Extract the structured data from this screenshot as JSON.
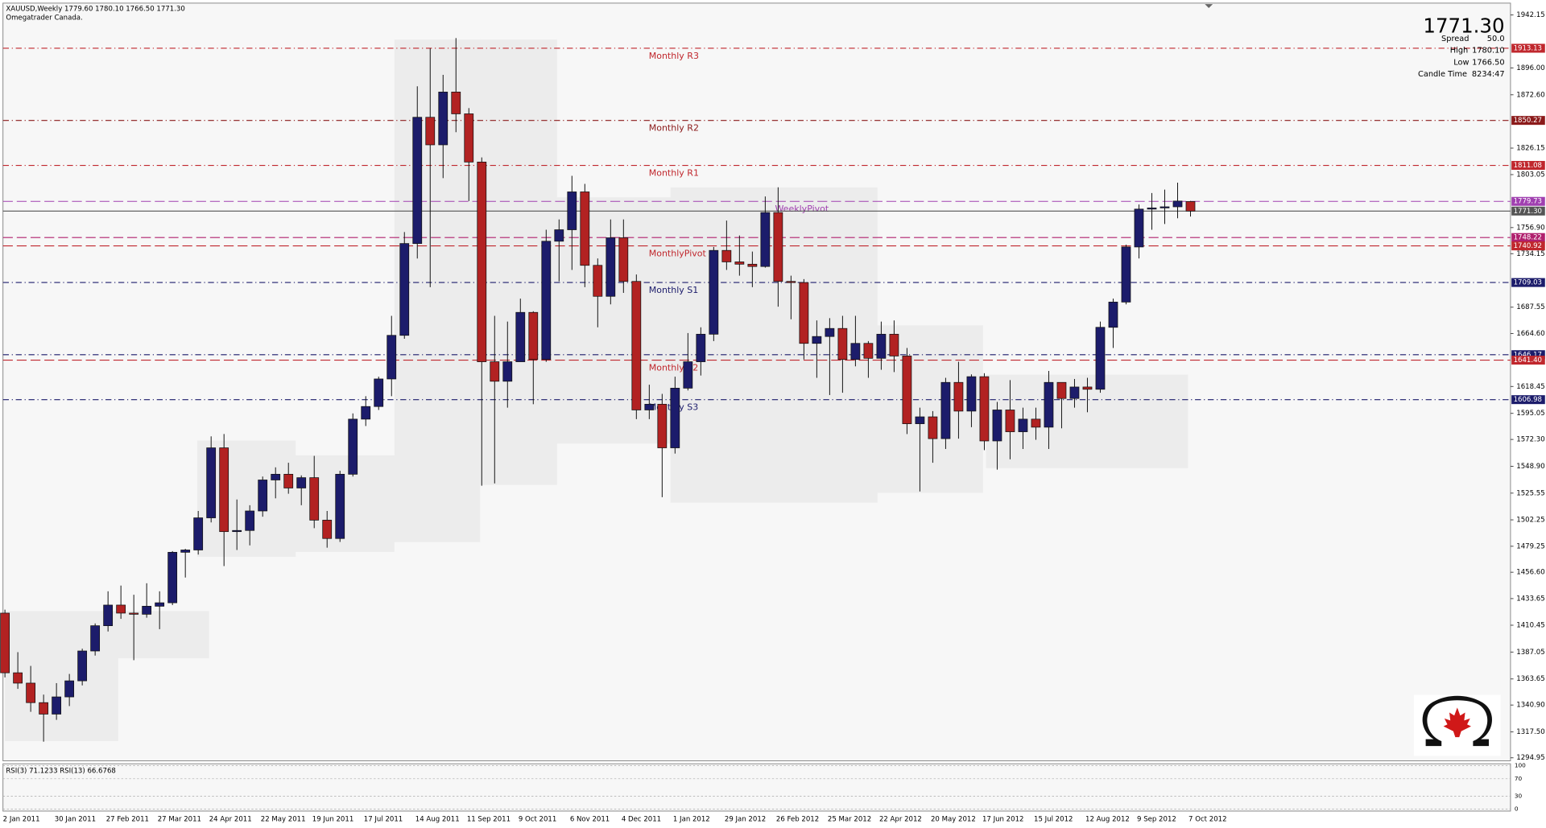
{
  "header": {
    "symbol_line": "XAUUSD,Weekly  1779.60 1780.10 1766.50 1771.30",
    "broker": "Omegatrader Canada."
  },
  "quote": {
    "bid": "1771.30",
    "spread_label": "Spread",
    "spread": "50.0",
    "high_label": "High",
    "high": "1780.10",
    "low_label": "Low",
    "low": "1766.50",
    "candle_time_label": "Candle Time",
    "candle_time": "8234:47"
  },
  "rsi": {
    "label": "RSI(3) 71.1233  RSI(13) 66.6768",
    "ylim": [
      0,
      100
    ],
    "yticks": [
      100,
      70,
      30,
      0
    ]
  },
  "chart_data": {
    "type": "candlestick",
    "up_color": "#1c1c6b",
    "down_color": "#b22222",
    "ylim": [
      1292.3,
      1952.45
    ],
    "yticks": [
      1942.15,
      {
        "value": 1896.0,
        "label": "1896.00"
      },
      {
        "value": 1872.6,
        "label": "1872.60"
      },
      1826.15,
      1803.05,
      {
        "value": 1756.9,
        "label": "1756.90"
      },
      1734.15,
      1687.55,
      {
        "value": 1664.6,
        "label": "1664.60"
      },
      1618.45,
      1595.05,
      {
        "value": 1572.3,
        "label": "1572.30"
      },
      {
        "value": 1548.9,
        "label": "1548.90"
      },
      1525.55,
      1502.25,
      1479.25,
      {
        "value": 1456.6,
        "label": "1456.60"
      },
      1433.65,
      1410.45,
      1387.05,
      1363.65,
      {
        "value": 1340.9,
        "label": "1340.90"
      },
      {
        "value": 1317.5,
        "label": "1317.50"
      },
      1294.95
    ],
    "x": [
      "2 Jan 2011",
      null,
      null,
      null,
      "30 Jan 2011",
      null,
      null,
      null,
      "27 Feb 2011",
      null,
      null,
      null,
      "27 Mar 2011",
      null,
      null,
      null,
      "24 Apr 2011",
      null,
      null,
      null,
      "22 May 2011",
      null,
      null,
      null,
      "19 Jun 2011",
      null,
      null,
      null,
      "17 Jul 2011",
      null,
      null,
      null,
      "14 Aug 2011",
      null,
      null,
      null,
      "11 Sep 2011",
      null,
      null,
      null,
      "9 Oct 2011",
      null,
      null,
      null,
      "6 Nov 2011",
      null,
      null,
      null,
      "4 Dec 2011",
      null,
      null,
      null,
      "1 Jan 2012",
      null,
      null,
      null,
      "29 Jan 2012",
      null,
      null,
      null,
      "26 Feb 2012",
      null,
      null,
      null,
      "25 Mar 2012",
      null,
      null,
      null,
      "22 Apr 2012",
      null,
      null,
      null,
      "20 May 2012",
      null,
      null,
      null,
      "17 Jun 2012",
      null,
      null,
      null,
      "15 Jul 2012",
      null,
      null,
      null,
      "12 Aug 2012",
      null,
      null,
      null,
      "9 Sep 2012",
      null,
      null,
      null,
      "7 Oct 2012"
    ],
    "open": [
      1421,
      1369,
      1360,
      1343,
      1333,
      1348,
      1362,
      1388,
      1410,
      1428,
      1421,
      1420,
      1427,
      1430,
      1474,
      1476,
      1504,
      1565,
      1492,
      1493,
      1510,
      1537,
      1542,
      1530,
      1539,
      1502,
      1486,
      1542,
      1590,
      1601,
      1625,
      1663,
      1743,
      1853,
      1829,
      1875,
      1856,
      1814,
      1640,
      1623,
      1640,
      1683,
      1642,
      1745,
      1755,
      1788,
      1724,
      1697,
      1748,
      1710,
      1598,
      1603,
      1565,
      1617,
      1640,
      1664,
      1737,
      1727,
      1725,
      1723,
      1770,
      1710,
      1709,
      1656,
      1662,
      1669,
      1642,
      1656,
      1643,
      1664,
      1645,
      1586,
      1592,
      1573,
      1622,
      1597,
      1627,
      1571,
      1598,
      1579,
      1590,
      1583,
      1622,
      1608,
      1618,
      1616,
      1670,
      1692,
      1740,
      1773,
      1774,
      1775,
      1779.6
    ],
    "high": [
      1424,
      1387,
      1375,
      1350,
      1360,
      1368,
      1390,
      1412,
      1440,
      1445,
      1437,
      1447,
      1440,
      1475,
      1477,
      1510,
      1575,
      1577,
      1520,
      1515,
      1540,
      1548,
      1552,
      1541,
      1558,
      1510,
      1545,
      1595,
      1610,
      1627,
      1680,
      1753,
      1880,
      1913,
      1890,
      1922,
      1861,
      1818,
      1680,
      1675,
      1695,
      1684,
      1755,
      1764,
      1802,
      1795,
      1730,
      1764,
      1764,
      1716,
      1620,
      1612,
      1627,
      1665,
      1670,
      1740,
      1763,
      1750,
      1736,
      1784,
      1792,
      1715,
      1712,
      1676,
      1678,
      1680,
      1680,
      1658,
      1675,
      1676,
      1652,
      1600,
      1597,
      1626,
      1640,
      1629,
      1630,
      1605,
      1624,
      1600,
      1600,
      1632,
      1622,
      1625,
      1626,
      1675,
      1695,
      1742,
      1777,
      1787,
      1790,
      1796,
      1780.1
    ],
    "low": [
      1365,
      1355,
      1335,
      1309,
      1328,
      1340,
      1358,
      1384,
      1405,
      1416,
      1380,
      1417,
      1407,
      1428,
      1452,
      1472,
      1500,
      1462,
      1476,
      1480,
      1505,
      1521,
      1525,
      1515,
      1495,
      1478,
      1483,
      1540,
      1584,
      1598,
      1610,
      1660,
      1730,
      1705,
      1800,
      1840,
      1780,
      1532,
      1534,
      1600,
      1640,
      1603,
      1640,
      1710,
      1720,
      1705,
      1670,
      1690,
      1700,
      1590,
      1590,
      1522,
      1560,
      1615,
      1628,
      1658,
      1720,
      1715,
      1705,
      1722,
      1688,
      1677,
      1642,
      1626,
      1611,
      1613,
      1636,
      1626,
      1633,
      1631,
      1577,
      1527,
      1552,
      1564,
      1573,
      1583,
      1563,
      1546,
      1555,
      1564,
      1572,
      1564,
      1582,
      1600,
      1596,
      1613,
      1652,
      1690,
      1730,
      1755,
      1760,
      1765,
      1766.5
    ],
    "close": [
      1369,
      1360,
      1343,
      1333,
      1348,
      1362,
      1388,
      1410,
      1428,
      1421,
      1420,
      1427,
      1430,
      1474,
      1476,
      1504,
      1565,
      1492,
      1493,
      1510,
      1537,
      1542,
      1530,
      1539,
      1502,
      1486,
      1542,
      1590,
      1601,
      1625,
      1663,
      1743,
      1853,
      1829,
      1875,
      1856,
      1814,
      1640,
      1623,
      1640,
      1683,
      1642,
      1745,
      1755,
      1788,
      1724,
      1697,
      1748,
      1710,
      1598,
      1603,
      1565,
      1617,
      1640,
      1664,
      1737,
      1727,
      1725,
      1723,
      1770,
      1710,
      1709,
      1656,
      1662,
      1669,
      1642,
      1656,
      1643,
      1664,
      1645,
      1586,
      1592,
      1573,
      1622,
      1597,
      1627,
      1571,
      1598,
      1579,
      1590,
      1583,
      1622,
      1608,
      1618,
      1616,
      1670,
      1692,
      1740,
      1773,
      1774,
      1775,
      1780,
      1771.3
    ],
    "levels": [
      {
        "name": "Monthly R3",
        "value": 1913.13,
        "tag": "1913.13",
        "color": "#c0272d",
        "style": "dashdot"
      },
      {
        "name": "Monthly R2",
        "value": 1850.27,
        "tag": "1850.27",
        "color": "#8b1a1a",
        "style": "dashdot"
      },
      {
        "name": "Monthly R1",
        "value": 1811.08,
        "tag": "1811.08",
        "color": "#c0272d",
        "style": "dashdot"
      },
      {
        "name": "WeeklyPivot",
        "value": 1779.73,
        "tag": "1779.73",
        "color": "#a040b0",
        "style": "dash"
      },
      {
        "value": 1771.3,
        "tag": "1771.30",
        "color": "#555555",
        "style": "solid"
      },
      {
        "value": 1748.22,
        "tag": "1748.22",
        "color": "#b0206e",
        "style": "dash"
      },
      {
        "name": "MonthlyPivot",
        "value": 1740.92,
        "tag": "1740.92",
        "color": "#c0272d",
        "style": "dash"
      },
      {
        "name": "Monthly S1",
        "value": 1709.03,
        "tag": "1709.03",
        "color": "#1c1c6b",
        "style": "dashdot"
      },
      {
        "value": 1646.17,
        "tag": "1646.17",
        "color": "#1c1c6b",
        "style": "dashdot"
      },
      {
        "name": "Monthly S2",
        "value": 1641.4,
        "tag": "1641.40",
        "color": "#c0272d",
        "style": "dash"
      },
      {
        "name": "Monthly S3",
        "value": 1606.98,
        "tag": "1606.98",
        "color": "#1c1c6b",
        "style": "dashdot"
      }
    ]
  }
}
